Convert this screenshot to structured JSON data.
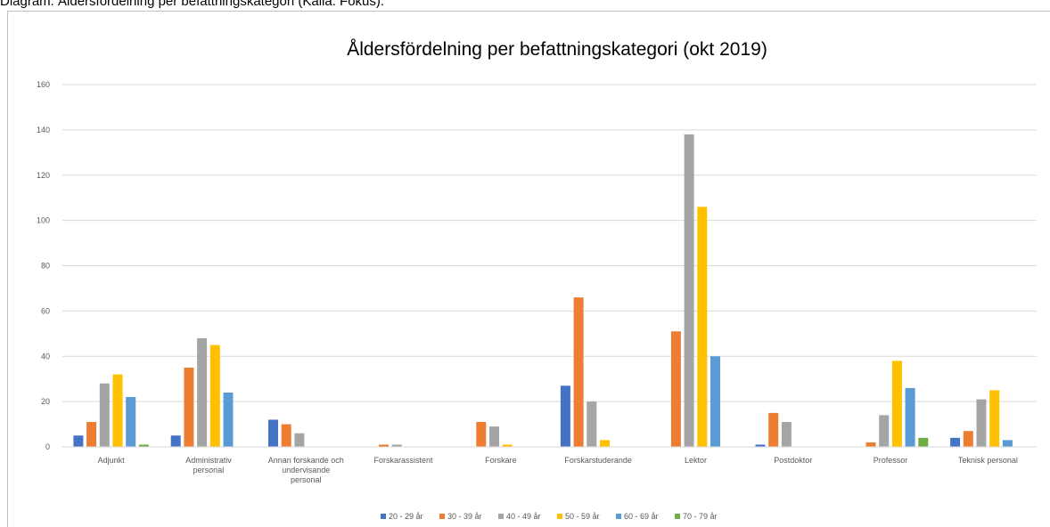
{
  "caption": "Diagram: Åldersfördelning per befattningskategori (Källa: Fokus).",
  "chart_data": {
    "type": "bar",
    "title": "Åldersfördelning per befattningskategori (okt 2019)",
    "categories": [
      "Adjunkt",
      "Administrativ personal",
      "Annan forskande och undervisande personal",
      "Forskarassistent",
      "Forskare",
      "Forskarstuderande",
      "Lektor",
      "Postdoktor",
      "Professor",
      "Teknisk personal"
    ],
    "series": [
      {
        "name": "20 - 29 år",
        "color": "#4472c4",
        "values": [
          5,
          5,
          12,
          0,
          0,
          27,
          0,
          1,
          0,
          4
        ]
      },
      {
        "name": "30 - 39 år",
        "color": "#ed7d31",
        "values": [
          11,
          35,
          10,
          1,
          11,
          66,
          51,
          15,
          2,
          7
        ]
      },
      {
        "name": "40 - 49 år",
        "color": "#a5a5a5",
        "values": [
          28,
          48,
          6,
          1,
          9,
          20,
          138,
          11,
          14,
          21
        ]
      },
      {
        "name": "50 - 59 år",
        "color": "#ffc000",
        "values": [
          32,
          45,
          0,
          0,
          1,
          3,
          106,
          0,
          38,
          25
        ]
      },
      {
        "name": "60 - 69 år",
        "color": "#5b9bd5",
        "values": [
          22,
          24,
          0,
          0,
          0,
          0,
          40,
          0,
          26,
          3
        ]
      },
      {
        "name": "70 - 79 år",
        "color": "#70ad47",
        "values": [
          1,
          0,
          0,
          0,
          0,
          0,
          0,
          0,
          4,
          0
        ]
      }
    ],
    "ylim": [
      0,
      160
    ],
    "yticks": [
      0,
      20,
      40,
      60,
      80,
      100,
      120,
      140,
      160
    ],
    "grid": true,
    "legend": "bottom"
  }
}
